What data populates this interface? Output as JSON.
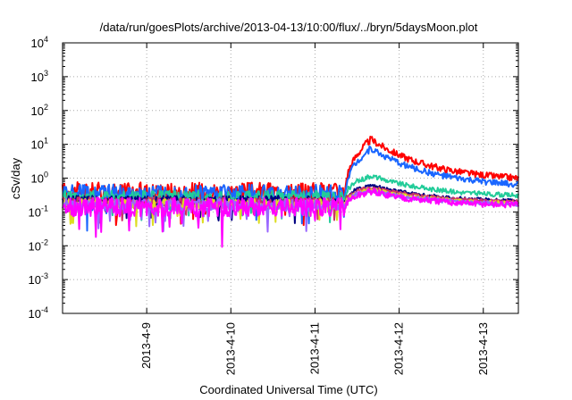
{
  "chart_data": {
    "type": "line",
    "title": "/data/run/goesPlots/archive/2013-04-13/10:00/flux/../bryn/5daysMoon.plot",
    "xlabel": "Coordinated Universal Time (UTC)",
    "ylabel": "cSv/day",
    "yscale": "log",
    "ylim": [
      0.0001,
      10000
    ],
    "y_ticks": [
      {
        "value": 10000,
        "base": "10",
        "exp": "4"
      },
      {
        "value": 1000,
        "base": "10",
        "exp": "3"
      },
      {
        "value": 100,
        "base": "10",
        "exp": "2"
      },
      {
        "value": 10,
        "base": "10",
        "exp": "1"
      },
      {
        "value": 1,
        "base": "10",
        "exp": "0"
      },
      {
        "value": 0.1,
        "base": "10",
        "exp": "-1"
      },
      {
        "value": 0.01,
        "base": "10",
        "exp": "-2"
      },
      {
        "value": 0.001,
        "base": "10",
        "exp": "-3"
      },
      {
        "value": 0.0001,
        "base": "10",
        "exp": "-4"
      }
    ],
    "xlim": [
      "2013-04-08T00:00",
      "2013-04-13T10:00"
    ],
    "x_ticks": [
      {
        "value": "2013-04-09T00:00",
        "label": "2013-4-9"
      },
      {
        "value": "2013-04-10T00:00",
        "label": "2013-4-10"
      },
      {
        "value": "2013-04-11T00:00",
        "label": "2013-4-11"
      },
      {
        "value": "2013-04-12T00:00",
        "label": "2013-4-12"
      },
      {
        "value": "2013-04-13T00:00",
        "label": "2013-4-13"
      }
    ],
    "grid": true,
    "series": [
      {
        "color": "#ff0000",
        "base": 0.4,
        "peak": 14.0,
        "end": 1.0,
        "noise": 0.28
      },
      {
        "color": "#1a66ff",
        "base": 0.36,
        "peak": 7.6,
        "end": 0.65,
        "noise": 0.26
      },
      {
        "color": "#22cc99",
        "base": 0.27,
        "peak": 1.2,
        "end": 0.31,
        "noise": 0.2
      },
      {
        "color": "#000080",
        "base": 0.21,
        "peak": 0.62,
        "end": 0.21,
        "noise": 0.16
      },
      {
        "color": "#cc3366",
        "base": 0.19,
        "peak": 0.55,
        "end": 0.2,
        "noise": 0.16
      },
      {
        "color": "#dddd22",
        "base": 0.17,
        "peak": 0.48,
        "end": 0.18,
        "noise": 0.16
      },
      {
        "color": "#9966ff",
        "base": 0.16,
        "peak": 0.44,
        "end": 0.17,
        "noise": 0.18
      },
      {
        "color": "#ff00ff",
        "base": 0.14,
        "peak": 0.4,
        "end": 0.16,
        "noise": 0.28
      }
    ],
    "event": {
      "onset": "2013-04-11T08:40",
      "peak_time": "2013-04-11T16:00"
    }
  }
}
